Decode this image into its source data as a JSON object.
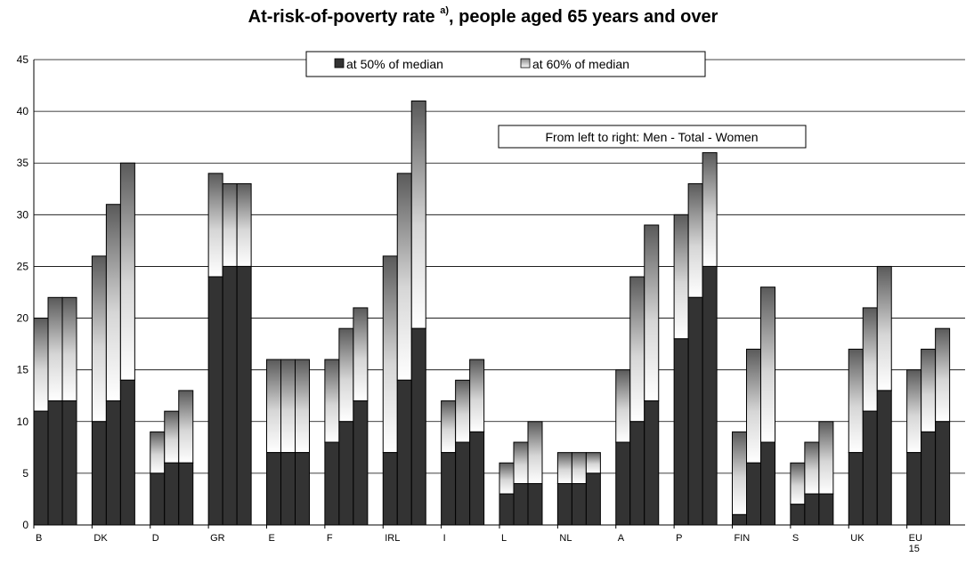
{
  "chart_data": {
    "type": "bar",
    "title": "At-risk-of-poverty rate",
    "title_superscript": "a)",
    "title_suffix": ", people aged 65 years and over",
    "ylim": [
      0,
      45
    ],
    "yticks": [
      0,
      5,
      10,
      15,
      20,
      25,
      30,
      35,
      40,
      45
    ],
    "grid": true,
    "stacked_by": "threshold",
    "bar_order_note": "From left to right: Men - Total - Women",
    "legend": {
      "placement": "top-center",
      "entries": [
        {
          "label": "at 50% of median",
          "color": "#333333"
        },
        {
          "label": "at 60% of median",
          "color": "#e0e0e0"
        }
      ]
    },
    "categories": [
      "B",
      "DK",
      "D",
      "GR",
      "E",
      "F",
      "IRL",
      "I",
      "L",
      "NL",
      "A",
      "P",
      "FIN",
      "S",
      "UK",
      "EU 15"
    ],
    "category_label_lines": [
      [
        "B"
      ],
      [
        "DK"
      ],
      [
        "D"
      ],
      [
        "GR"
      ],
      [
        "E"
      ],
      [
        "F"
      ],
      [
        "IRL"
      ],
      [
        "I"
      ],
      [
        "L"
      ],
      [
        "NL"
      ],
      [
        "A"
      ],
      [
        "P"
      ],
      [
        "FIN"
      ],
      [
        "S"
      ],
      [
        "UK"
      ],
      [
        "EU",
        "15"
      ]
    ],
    "groups": [
      "Men",
      "Total",
      "Women"
    ],
    "series": [
      {
        "name": "at 50% of median",
        "values": [
          [
            11,
            12,
            12
          ],
          [
            10,
            12,
            14
          ],
          [
            5,
            6,
            6
          ],
          [
            24,
            25,
            25
          ],
          [
            7,
            7,
            7
          ],
          [
            8,
            10,
            12
          ],
          [
            7,
            14,
            19
          ],
          [
            7,
            8,
            9
          ],
          [
            3,
            4,
            4
          ],
          [
            4,
            4,
            5
          ],
          [
            8,
            10,
            12
          ],
          [
            18,
            22,
            25
          ],
          [
            1,
            6,
            8
          ],
          [
            2,
            3,
            3
          ],
          [
            7,
            11,
            13
          ],
          [
            7,
            9,
            10
          ]
        ]
      },
      {
        "name": "at 60% of median",
        "values": [
          [
            20,
            22,
            22
          ],
          [
            26,
            31,
            35
          ],
          [
            9,
            11,
            13
          ],
          [
            34,
            33,
            33
          ],
          [
            16,
            16,
            16
          ],
          [
            16,
            19,
            21
          ],
          [
            26,
            34,
            41
          ],
          [
            12,
            14,
            16
          ],
          [
            6,
            8,
            10
          ],
          [
            7,
            7,
            7
          ],
          [
            15,
            24,
            29
          ],
          [
            30,
            33,
            36
          ],
          [
            9,
            17,
            23
          ],
          [
            6,
            8,
            10
          ],
          [
            17,
            21,
            25
          ],
          [
            15,
            17,
            19
          ]
        ]
      }
    ]
  }
}
